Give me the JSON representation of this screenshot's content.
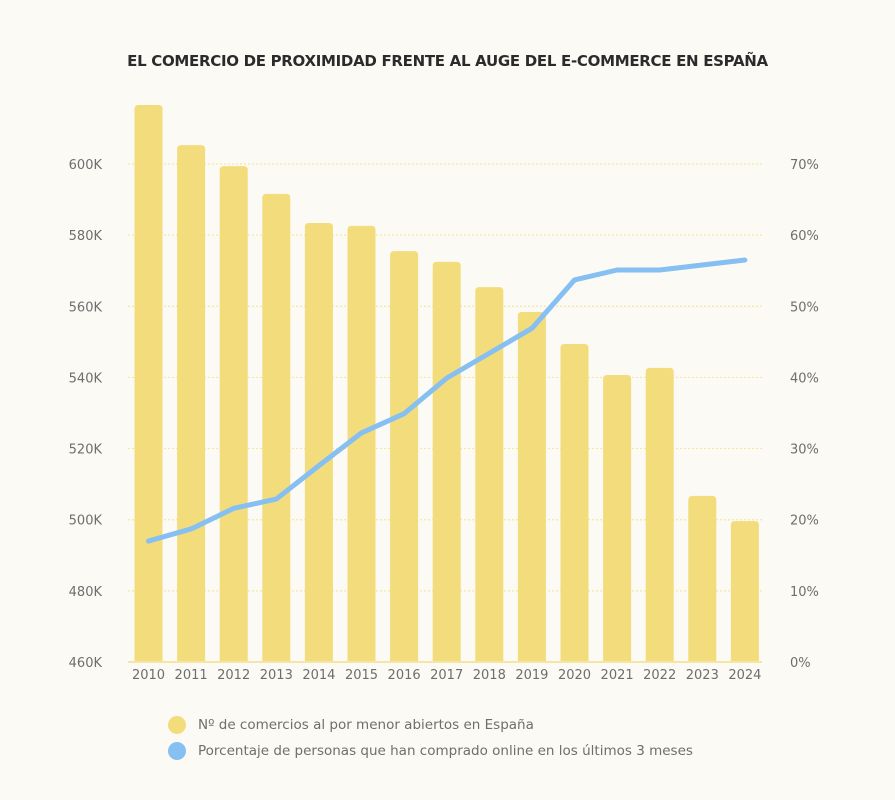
{
  "chart_data": {
    "type": "bar+line",
    "title": "EL COMERCIO DE PROXIMIDAD FRENTE AL AUGE DEL E-COMMERCE EN ESPAÑA",
    "categories": [
      "2010",
      "2011",
      "2012",
      "2013",
      "2014",
      "2015",
      "2016",
      "2017",
      "2018",
      "2019",
      "2020",
      "2021",
      "2022",
      "2023",
      "2024"
    ],
    "series": [
      {
        "name": "Nº de comercios al por menor abiertos en España",
        "type": "bar",
        "axis": "left",
        "color": "#f3dc7c",
        "values": [
          616.6,
          605.3,
          599.4,
          591.6,
          583.4,
          582.6,
          575.5,
          572.5,
          565.4,
          558.4,
          549.4,
          540.7,
          542.7,
          506.7,
          499.6
        ],
        "unit": "K"
      },
      {
        "name": "Porcentaje de personas que han comprado online en los últimos 3 meses",
        "type": "line",
        "axis": "right",
        "color": "#86bff2",
        "values": [
          17.0,
          18.7,
          21.6,
          22.9,
          27.6,
          32.2,
          34.9,
          39.9,
          43.4,
          46.9,
          53.7,
          55.1,
          55.1,
          55.8,
          56.5
        ],
        "unit": "%"
      }
    ],
    "left_axis": {
      "ylim": [
        460,
        600
      ],
      "ticks": [
        460,
        480,
        500,
        520,
        540,
        560,
        580,
        600
      ],
      "tick_labels": [
        "460K",
        "480K",
        "500K",
        "520K",
        "540K",
        "560K",
        "580K",
        "600K"
      ]
    },
    "right_axis": {
      "ylim": [
        0,
        70
      ],
      "ticks": [
        0,
        10,
        20,
        30,
        40,
        50,
        60,
        70
      ],
      "tick_labels": [
        "0%",
        "10%",
        "20%",
        "30%",
        "40%",
        "50%",
        "60%",
        "70%"
      ]
    },
    "xlabel": "",
    "grid": true,
    "legend_position": "bottom-left"
  },
  "legend": [
    {
      "label": "Nº de comercios al por menor abiertos en España",
      "color": "#f3dc7c"
    },
    {
      "label": "Porcentaje de personas que han comprado online en los últimos 3 meses",
      "color": "#86bff2"
    }
  ]
}
